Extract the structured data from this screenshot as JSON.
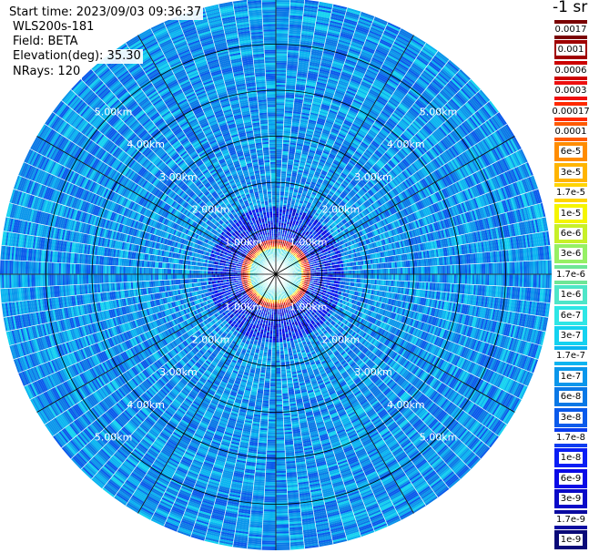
{
  "header": {
    "start_time": "Start time: 2023/09/03 09:36:37",
    "instrument": "WLS200s-181",
    "field": "Field: BETA",
    "elevation": "Elevation(deg): 35.30",
    "nrays": "NRays: 120"
  },
  "colorbar": {
    "unit": "-1 sr",
    "labels": [
      "0.0017",
      "0.001",
      "0.0006",
      "0.0003",
      "0.00017",
      "0.0001",
      "6e-5",
      "3e-5",
      "1.7e-5",
      "1e-5",
      "6e-6",
      "3e-6",
      "1.7e-6",
      "1e-6",
      "6e-7",
      "3e-7",
      "1.7e-7",
      "1e-7",
      "6e-8",
      "3e-8",
      "1.7e-8",
      "1e-8",
      "6e-9",
      "3e-9",
      "1.7e-9",
      "1e-9"
    ],
    "colors": [
      "#7a0000",
      "#a00000",
      "#cc0000",
      "#ee1010",
      "#ff2a00",
      "#ff5a00",
      "#ff8c00",
      "#ffb400",
      "#ffd400",
      "#f5f500",
      "#c8f028",
      "#96f064",
      "#6ee696",
      "#4ee6c8",
      "#2ee6e6",
      "#14d2f0",
      "#0ab4f0",
      "#0a96eb",
      "#0a78e6",
      "#0a5aeb",
      "#0a3cf0",
      "#0a1ef5",
      "#0a0ae6",
      "#0a0ac8",
      "#0a0aa0",
      "#0a0a78"
    ]
  },
  "chart_data": {
    "type": "heatmap",
    "projection": "polar-ppi",
    "field": "BETA",
    "nrays": 120,
    "range_rings_km": [
      1,
      2,
      3,
      4,
      5
    ],
    "ring_label_text": [
      "1.00km",
      "2.00km",
      "3.00km",
      "4.00km",
      "5.00km"
    ],
    "max_range_km": 6.0,
    "color_scale": "log",
    "value_range": [
      1e-09,
      0.0017
    ],
    "background_value": 1e-07,
    "near_field_value": 6e-07,
    "ring_peak_value": 0.001,
    "ring_peak_range_km": 0.7,
    "spokes": 12
  }
}
